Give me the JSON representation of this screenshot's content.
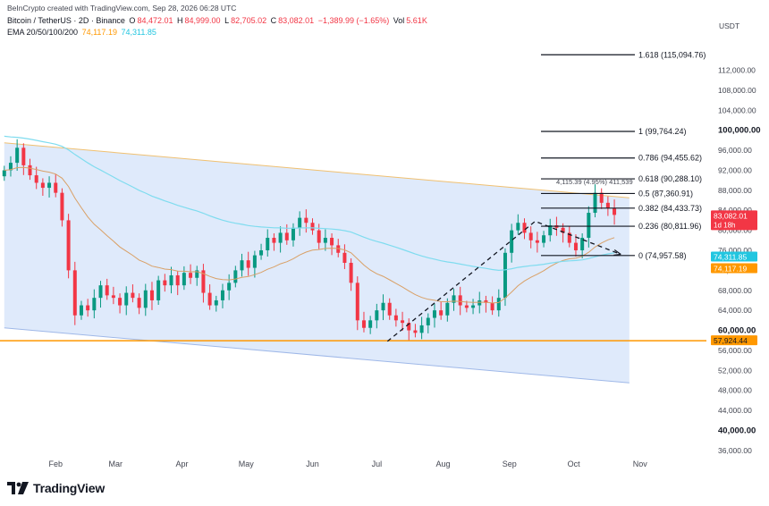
{
  "credit": "BeInCrypto created with TradingView.com, Sep 28, 2026 06:28 UTC",
  "symbol": {
    "name": "Bitcoin / TetherUS · 2D · Binance",
    "open_label": "O",
    "open": "84,472.01",
    "high_label": "H",
    "high": "84,999.00",
    "low_label": "L",
    "low": "82,705.02",
    "close_label": "C",
    "close": "83,082.01",
    "change": "−1,389.99 (−1.65%)",
    "vol_label": "Vol",
    "vol": "5.61K"
  },
  "ema": {
    "label": "EMA 20/50/100/200",
    "value_orange": "74,117.19",
    "value_cyan": "74,311.85"
  },
  "currency": "USDT",
  "logo_text": "TradingView",
  "colors": {
    "up": "#089981",
    "down": "#f23645",
    "channel": "#dbe8fb",
    "ema_orange": "#d9a066",
    "ema_cyan": "#7fdcef",
    "support": "#ff9800",
    "grid": "#ffffff",
    "text": "#131722"
  },
  "chart_data": {
    "type": "candlestick",
    "y_ticks": [
      "36,000.00",
      "40,000.00",
      "44,000.00",
      "48,000.00",
      "52,000.00",
      "56,000.00",
      "60,000.00",
      "64,000.00",
      "68,000.00",
      "72,000.00",
      "76,000.00",
      "80,000.00",
      "84,000.00",
      "88,000.00",
      "92,000.00",
      "96,000.00",
      "100,000.00",
      "104,000.00",
      "108,000.00",
      "112,000.00"
    ],
    "y_tick_values": [
      36000,
      40000,
      44000,
      48000,
      52000,
      56000,
      60000,
      64000,
      68000,
      72000,
      76000,
      80000,
      84000,
      88000,
      92000,
      96000,
      100000,
      104000,
      108000,
      112000
    ],
    "bold_ticks": [
      40000,
      60000,
      100000
    ],
    "months": [
      {
        "label": "Feb",
        "day": 14
      },
      {
        "label": "Mar",
        "day": 42
      },
      {
        "label": "Apr",
        "day": 73
      },
      {
        "label": "May",
        "day": 103
      },
      {
        "label": "Jun",
        "day": 134
      },
      {
        "label": "Jul",
        "day": 164
      },
      {
        "label": "Aug",
        "day": 195
      },
      {
        "label": "Sep",
        "day": 226
      },
      {
        "label": "Oct",
        "day": 256
      },
      {
        "label": "Nov",
        "day": 287
      }
    ],
    "ylim": [
      34000,
      118000
    ],
    "xlim_days": [
      -12,
      318
    ],
    "ohlc_close": [
      92000,
      93500,
      96500,
      93000,
      91000,
      89500,
      88500,
      89500,
      87500,
      82000,
      72000,
      63000,
      65000,
      64000,
      66500,
      69000,
      67000,
      66500,
      65000,
      67500,
      66500,
      64500,
      68000,
      66000,
      70000,
      69000,
      71000,
      69000,
      71500,
      70500,
      72000,
      67500,
      65000,
      66000,
      68000,
      69500,
      72000,
      74000,
      72500,
      75000,
      76000,
      78500,
      77500,
      79500,
      78000,
      80500,
      82500,
      81500,
      80000,
      77500,
      78500,
      77000,
      75500,
      73500,
      69500,
      62000,
      60500,
      62000,
      64000,
      65500,
      63000,
      62000,
      61500,
      60000,
      59500,
      61000,
      62500,
      64000,
      63000,
      65500,
      67000,
      65000,
      64500,
      65000,
      66000,
      65500,
      64000,
      66500,
      75500,
      80000,
      81500,
      79500,
      78000,
      77500,
      79000,
      81000,
      80500,
      79500,
      77500,
      76000,
      78500,
      83500,
      87500,
      85500,
      84472,
      83082
    ],
    "fibonacci": [
      {
        "ratio": "0",
        "price": "74,957.58",
        "value": 74957.58
      },
      {
        "ratio": "0.236",
        "price": "80,811.96",
        "value": 80811.96
      },
      {
        "ratio": "0.382",
        "price": "84,433.73",
        "value": 84433.73
      },
      {
        "ratio": "0.5",
        "price": "87,360.91",
        "value": 87360.91
      },
      {
        "ratio": "0.618",
        "price": "90,288.10",
        "value": 90288.1
      },
      {
        "ratio": "0.786",
        "price": "94,455.62",
        "value": 94455.62
      },
      {
        "ratio": "1",
        "price": "99,764.24",
        "value": 99764.24
      },
      {
        "ratio": "1.618",
        "price": "115,094.76",
        "value": 115094.76
      }
    ],
    "measure_label": "4,115.39 (4.95%) 411,539",
    "support": {
      "price": "57,924.44",
      "value": 57924.44
    },
    "price_tags": [
      {
        "text": "83,082.01",
        "sub": "1d 18h",
        "value": 83082.01,
        "color": "#f23645"
      },
      {
        "text": "74,311.85",
        "value": 74311.85,
        "color": "#22c6e0"
      },
      {
        "text": "74,117.19",
        "value": 74117.19,
        "color": "#ff9800"
      }
    ]
  }
}
